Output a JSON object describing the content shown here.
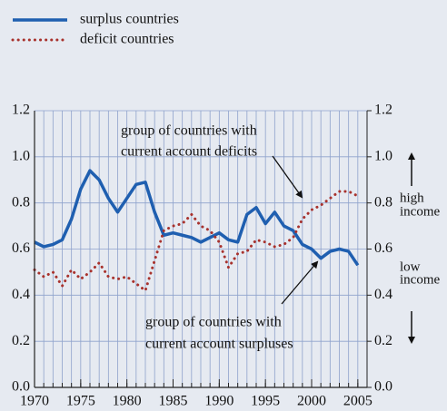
{
  "chart_data": {
    "type": "line",
    "x": [
      1970,
      1971,
      1972,
      1973,
      1974,
      1975,
      1976,
      1977,
      1978,
      1979,
      1980,
      1981,
      1982,
      1983,
      1984,
      1985,
      1986,
      1987,
      1988,
      1989,
      1990,
      1991,
      1992,
      1993,
      1994,
      1995,
      1996,
      1997,
      1998,
      1999,
      2000,
      2001,
      2002,
      2003,
      2004,
      2005
    ],
    "series": [
      {
        "name": "surplus countries",
        "color": "#1f5fb0",
        "style": "solid",
        "values": [
          0.63,
          0.61,
          0.62,
          0.64,
          0.73,
          0.86,
          0.94,
          0.9,
          0.82,
          0.76,
          0.82,
          0.88,
          0.89,
          0.76,
          0.66,
          0.67,
          0.66,
          0.65,
          0.63,
          0.65,
          0.67,
          0.64,
          0.63,
          0.75,
          0.78,
          0.71,
          0.76,
          0.7,
          0.68,
          0.62,
          0.6,
          0.56,
          0.59,
          0.6,
          0.59,
          0.53
        ]
      },
      {
        "name": "deficit countries",
        "color": "#a8322d",
        "style": "dotted",
        "values": [
          0.51,
          0.48,
          0.5,
          0.44,
          0.51,
          0.47,
          0.5,
          0.54,
          0.48,
          0.47,
          0.48,
          0.45,
          0.42,
          0.55,
          0.68,
          0.7,
          0.71,
          0.75,
          0.7,
          0.68,
          0.63,
          0.52,
          0.58,
          0.59,
          0.64,
          0.63,
          0.61,
          0.62,
          0.65,
          0.73,
          0.77,
          0.79,
          0.82,
          0.85,
          0.85,
          0.83
        ]
      }
    ],
    "xlim": [
      1970,
      2006
    ],
    "xticks": [
      1970,
      1975,
      1980,
      1985,
      1990,
      1995,
      2000,
      2005
    ],
    "ylim": [
      0,
      1.2
    ],
    "yticks": [
      {
        "value": 0,
        "label": "0.0"
      },
      0.2,
      0.4,
      0.6,
      0.8,
      {
        "value": 1,
        "label": "1.0"
      },
      1.2
    ],
    "y2lim": [
      0,
      1.2
    ],
    "y2ticks": [
      {
        "value": 0,
        "label": "0.0"
      },
      0.2,
      0.4,
      0.6,
      0.8,
      {
        "value": 1,
        "label": "1.0"
      },
      1.2
    ],
    "grid": true,
    "legend": "top-left",
    "annotations": [
      {
        "text": [
          "group of countries with",
          "current account deficits"
        ]
      },
      {
        "text": [
          "group of countries with",
          "current account surpluses"
        ]
      },
      {
        "text": [
          "high",
          "income"
        ]
      },
      {
        "text": [
          "low",
          "income"
        ]
      }
    ]
  }
}
